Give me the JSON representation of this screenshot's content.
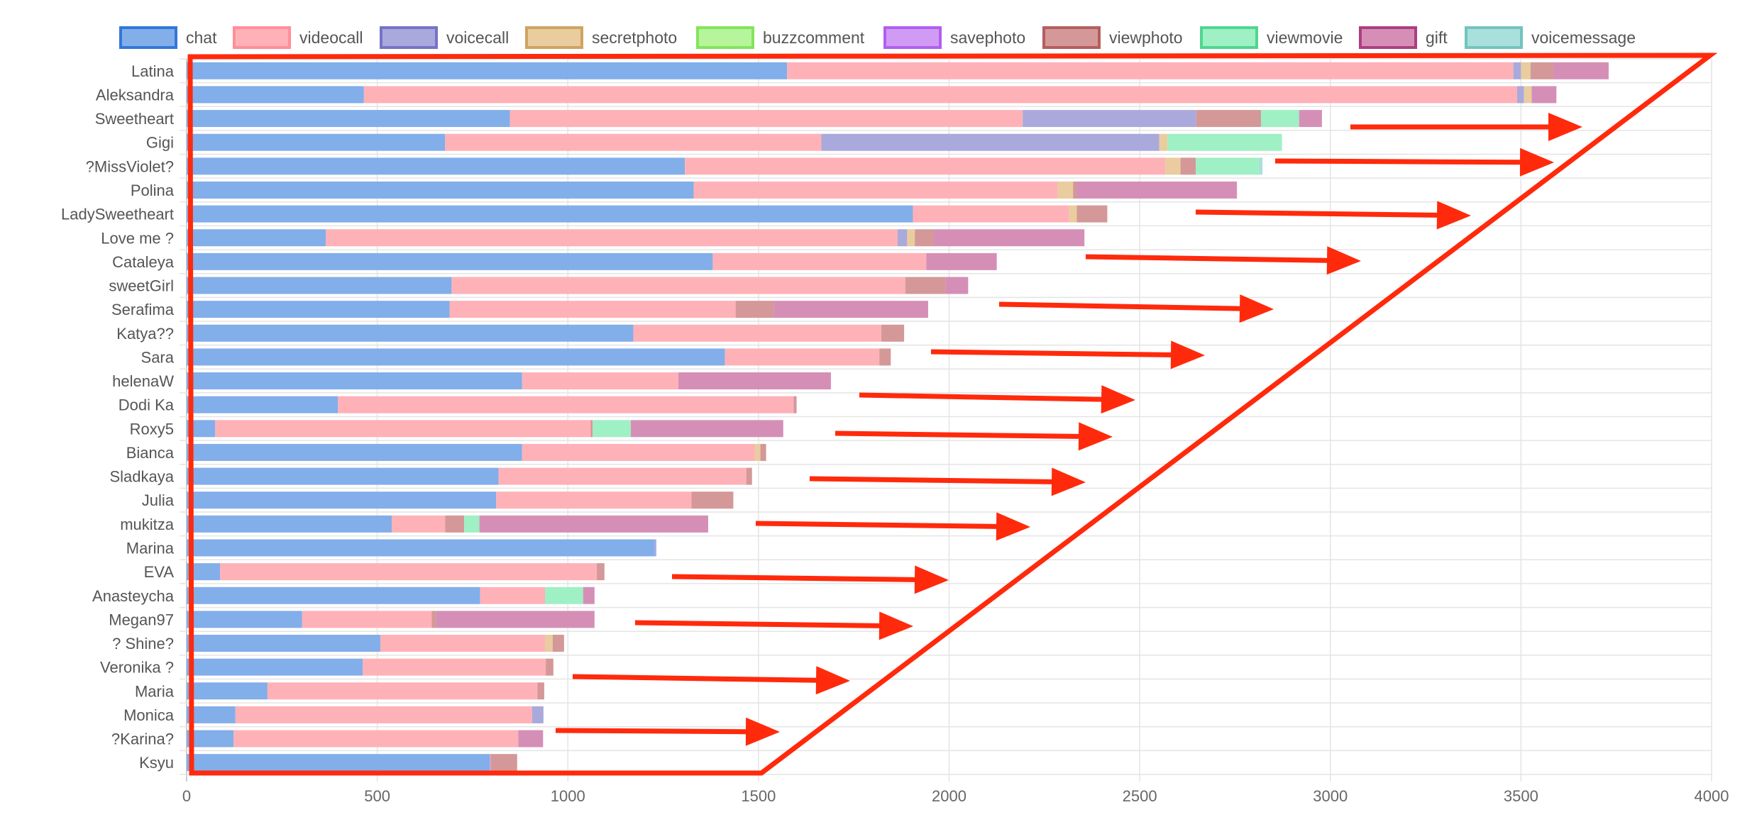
{
  "chart_data": {
    "type": "bar",
    "orientation": "horizontal",
    "stacked": true,
    "title": "",
    "xlabel": "",
    "ylabel": "",
    "xlim": [
      0,
      4000
    ],
    "x_ticks": [
      "0",
      "500",
      "1000",
      "1500",
      "2000",
      "2500",
      "3000",
      "3500",
      "4000"
    ],
    "grid": true,
    "legend_position": "top",
    "categories": [
      "Latina",
      "Aleksandra",
      "Sweetheart",
      "Gigi",
      "?MissViolet?",
      "Polina",
      "LadySweetheart",
      "Love me ?",
      "Cataleya",
      "sweetGirl",
      "Serafima",
      "Katya??",
      "Sara",
      "helenaW",
      "Dodi Ka",
      "Roxy5",
      "Bianca",
      "Sladkaya",
      "Julia",
      "mukitza",
      "Marina",
      "EVA",
      "Anasteycha",
      "Megan97",
      "? Shine?",
      "Veronika ?",
      "Maria",
      "Monica",
      "?Karina?",
      "Ksyu"
    ],
    "series": [
      {
        "name": "chat",
        "fill": "#82aeea",
        "stroke": "#3278d6",
        "values": [
          1575,
          465,
          848,
          678,
          1307,
          1330,
          1905,
          365,
          1380,
          695,
          690,
          1172,
          1412,
          880,
          397,
          75,
          880,
          818,
          812,
          538,
          1228,
          88,
          770,
          303,
          508,
          462,
          212,
          128,
          123,
          795
        ]
      },
      {
        "name": "videocall",
        "fill": "#ffb1b8",
        "stroke": "#ff8e98",
        "values": [
          1905,
          3025,
          1345,
          987,
          1260,
          955,
          410,
          1500,
          560,
          1190,
          750,
          650,
          405,
          410,
          1195,
          985,
          610,
          650,
          512,
          140,
          0,
          988,
          170,
          340,
          432,
          480,
          708,
          778,
          747,
          0
        ]
      },
      {
        "name": "voicecall",
        "fill": "#aaa9dc",
        "stroke": "#7673c8",
        "values": [
          20,
          18,
          455,
          886,
          0,
          0,
          0,
          25,
          0,
          0,
          0,
          0,
          0,
          0,
          0,
          0,
          0,
          0,
          0,
          0,
          4,
          0,
          0,
          0,
          0,
          0,
          0,
          30,
          0,
          0
        ]
      },
      {
        "name": "secretphoto",
        "fill": "#e9cd9f",
        "stroke": "#cfa461",
        "values": [
          25,
          20,
          0,
          22,
          40,
          40,
          20,
          20,
          0,
          0,
          0,
          0,
          0,
          0,
          0,
          0,
          15,
          0,
          0,
          0,
          0,
          0,
          0,
          0,
          20,
          0,
          0,
          0,
          0,
          0
        ]
      },
      {
        "name": "buzzcomment",
        "fill": "#b7f59c",
        "stroke": "#84e45a",
        "values": [
          0,
          0,
          0,
          0,
          0,
          0,
          0,
          0,
          0,
          0,
          0,
          0,
          0,
          0,
          0,
          0,
          0,
          0,
          0,
          0,
          0,
          0,
          0,
          0,
          0,
          0,
          0,
          0,
          0,
          0
        ]
      },
      {
        "name": "savephoto",
        "fill": "#d19bf5",
        "stroke": "#b15ff0",
        "values": [
          0,
          0,
          0,
          0,
          0,
          0,
          0,
          0,
          0,
          0,
          0,
          0,
          0,
          0,
          0,
          0,
          0,
          0,
          0,
          0,
          0,
          0,
          0,
          0,
          0,
          0,
          0,
          0,
          0,
          2
        ]
      },
      {
        "name": "viewphoto",
        "fill": "#d49898",
        "stroke": "#b45e5e",
        "values": [
          60,
          0,
          170,
          0,
          40,
          10,
          80,
          50,
          0,
          105,
          100,
          60,
          30,
          0,
          8,
          5,
          15,
          15,
          110,
          50,
          0,
          20,
          0,
          12,
          30,
          20,
          18,
          0,
          0,
          70
        ]
      },
      {
        "name": "viewmovie",
        "fill": "#9ff0c4",
        "stroke": "#4fd690",
        "values": [
          0,
          0,
          100,
          300,
          165,
          0,
          0,
          0,
          0,
          0,
          0,
          0,
          0,
          0,
          0,
          100,
          0,
          0,
          0,
          40,
          0,
          0,
          100,
          0,
          0,
          0,
          0,
          0,
          0,
          0
        ]
      },
      {
        "name": "gift",
        "fill": "#d58fb7",
        "stroke": "#ac3f80",
        "values": [
          145,
          65,
          60,
          0,
          0,
          420,
          0,
          395,
          185,
          60,
          405,
          0,
          0,
          400,
          0,
          400,
          0,
          0,
          0,
          600,
          0,
          0,
          30,
          415,
          0,
          0,
          0,
          0,
          65,
          0
        ]
      },
      {
        "name": "voicemessage",
        "fill": "#a9e0dc",
        "stroke": "#73c4bd",
        "values": [
          0,
          0,
          0,
          0,
          10,
          0,
          0,
          0,
          0,
          0,
          0,
          0,
          0,
          0,
          0,
          0,
          0,
          0,
          0,
          0,
          0,
          0,
          0,
          0,
          0,
          0,
          0,
          0,
          0,
          0
        ]
      }
    ]
  },
  "annotations": {
    "color": "#ff2a0c",
    "shape": "triangle outline with right-pointing arrows"
  }
}
